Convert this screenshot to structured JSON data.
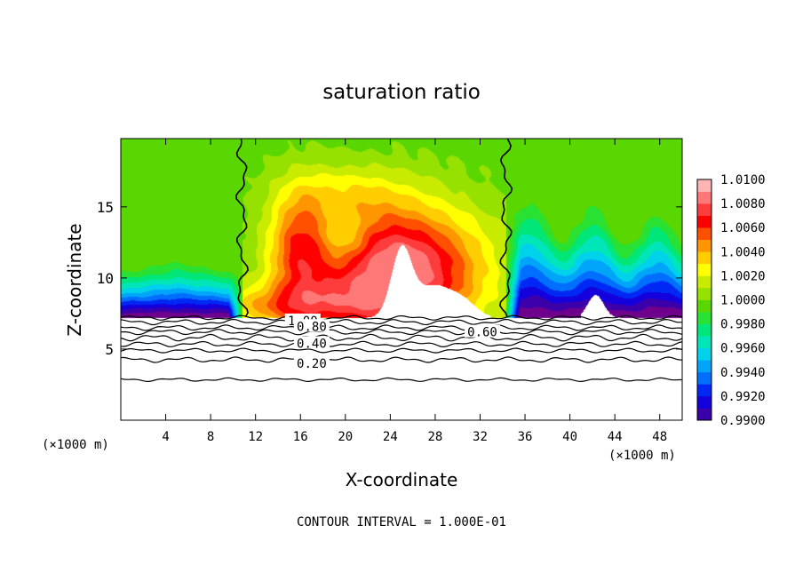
{
  "chart_data": {
    "type": "heatmap",
    "title": "saturation ratio",
    "xlabel": "X-coordinate",
    "ylabel": "Z-coordinate",
    "x_unit_left": "(×1000 m)",
    "x_unit_right": "(×1000 m)",
    "footer": "CONTOUR INTERVAL = 1.000E-01",
    "xlim": [
      0,
      50
    ],
    "ylim": [
      0,
      19.8
    ],
    "x_ticks": [
      4,
      8,
      12,
      16,
      20,
      24,
      28,
      32,
      36,
      40,
      44,
      48
    ],
    "x_tick_labels": [
      "4",
      "8",
      "12",
      "16",
      "20",
      "24",
      "28",
      "32",
      "36",
      "40",
      "44",
      "48"
    ],
    "y_ticks": [
      5,
      10,
      15
    ],
    "y_tick_labels": [
      "5",
      "10",
      "15"
    ],
    "colorbar": {
      "min": 0.99,
      "max": 1.01,
      "labels": [
        "1.0100",
        "1.0080",
        "1.0060",
        "1.0040",
        "1.0020",
        "1.0000",
        "0.9980",
        "0.9960",
        "0.9940",
        "0.9920",
        "0.9900"
      ]
    },
    "contours": [
      {
        "level": 1.0,
        "label": "1.00",
        "label_x": 16.2,
        "label_y": 7.0
      },
      {
        "level": 0.8,
        "label": "0.80",
        "label_x": 17.0,
        "label_y": 6.6
      },
      {
        "level": 0.6,
        "label": "0.60",
        "label_x": 32.2,
        "label_y": 6.2
      },
      {
        "level": 0.4,
        "label": "0.40",
        "label_x": 17.0,
        "label_y": 5.4
      },
      {
        "level": 0.2,
        "label": "0.20",
        "label_x": 17.0,
        "label_y": 4.0
      }
    ],
    "cloud_base_z": 7.2,
    "region_boundaries_x": [
      10.8,
      34.3
    ]
  }
}
